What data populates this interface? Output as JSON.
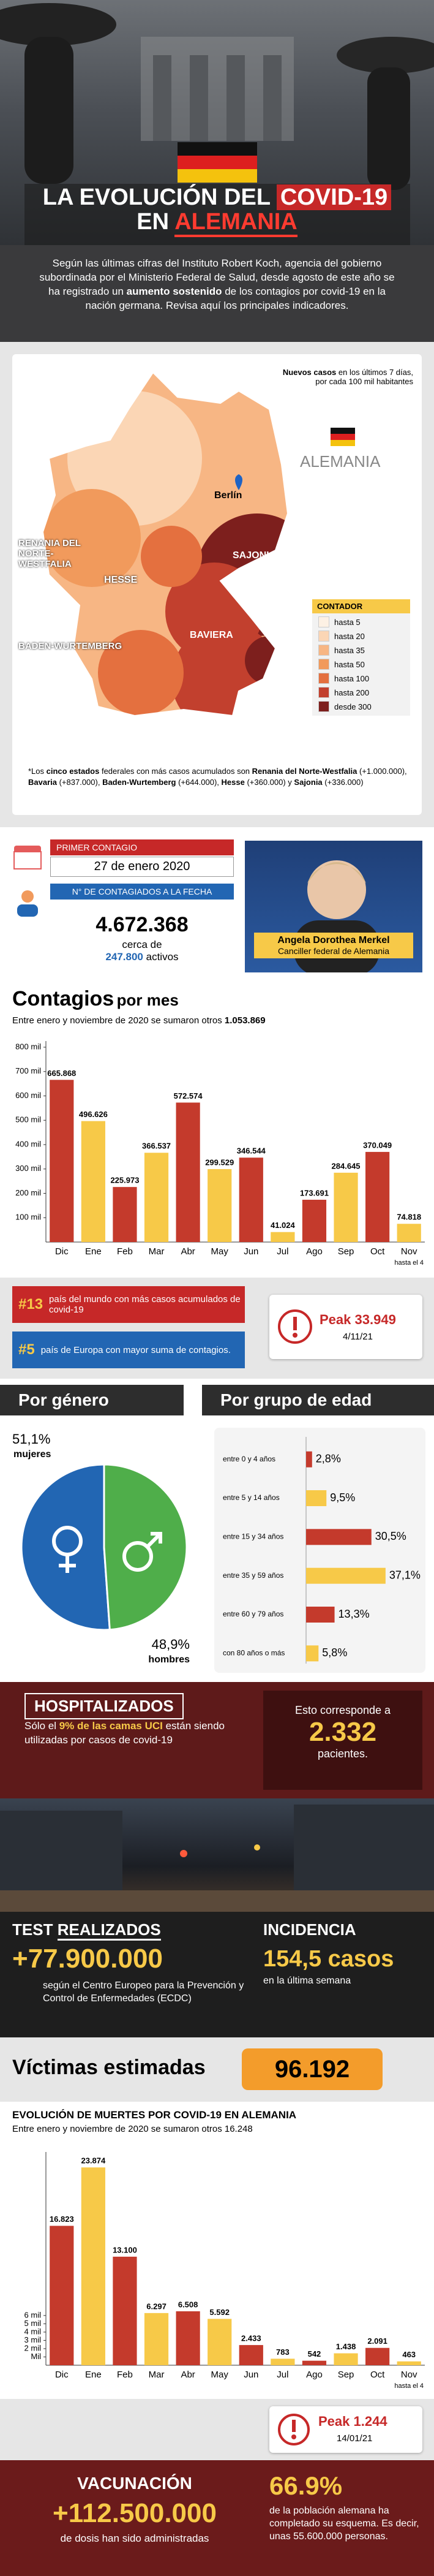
{
  "header": {
    "title_1": "LA EVOLUCIÓN DEL",
    "title_2": "COVID-19",
    "title_3": "EN",
    "title_4": "ALEMANIA"
  },
  "intro": {
    "text_1": "Según las últimas cifras del Instituto Robert Koch, agencia del gobierno subordinada por el Ministerio Federal de Salud, desde agosto de este año se ha registrado un ",
    "text_bold": "aumento sostenido",
    "text_2": " de los contagios por covid-19 en la nación germana. Revisa aquí los principales indicadores."
  },
  "map": {
    "note_bold": "Nuevos casos",
    "note": " en los últimos 7 días, por cada 100 mil habitantes",
    "country": "ALEMANIA",
    "regions": [
      "Berlín",
      "SAJONIA",
      "HESSE",
      "RENANIA DEL NORTE-WESTFALIA",
      "BADEN-WURTEMBERG",
      "BAVIERA"
    ],
    "legend_title": "CONTADOR",
    "legend": [
      {
        "label": "hasta 5",
        "color": "#fdf1e4"
      },
      {
        "label": "hasta 20",
        "color": "#fbd6b5"
      },
      {
        "label": "hasta 35",
        "color": "#f7b684"
      },
      {
        "label": "hasta 50",
        "color": "#f19a5c"
      },
      {
        "label": "hasta 100",
        "color": "#e4703f"
      },
      {
        "label": "hasta 200",
        "color": "#c2402e"
      },
      {
        "label": "desde 300",
        "color": "#7d1f1d"
      }
    ],
    "footnote": [
      {
        "text": "*Los ",
        "bold": false
      },
      {
        "text": "cinco estados",
        "bold": true
      },
      {
        "text": " federales con más casos acumulados son ",
        "bold": false
      },
      {
        "text": "Renania del Norte-Westfalia",
        "bold": true
      },
      {
        "text": " (+1.000.000), ",
        "bold": false
      },
      {
        "text": "Bavaria",
        "bold": true
      },
      {
        "text": " (+837.000), ",
        "bold": false
      },
      {
        "text": "Baden-Wurtemberg",
        "bold": true
      },
      {
        "text": " (+644.000), ",
        "bold": false
      },
      {
        "text": "Hesse",
        "bold": true
      },
      {
        "text": " (+360.000) y ",
        "bold": false
      },
      {
        "text": "Sajonia",
        "bold": true
      },
      {
        "text": " (+336.000)",
        "bold": false
      }
    ]
  },
  "facts": {
    "first_label": "PRIMER CONTAGIO",
    "first_date": "27 de enero 2020",
    "cases_label": "N° DE CONTAGIADOS A LA FECHA",
    "cases": "4.672.368",
    "active_1": "cerca de",
    "active_2": "247.800",
    "active_3": "activos",
    "person_name": "Angela Dorothea Merkel",
    "person_role": "Canciller federal de Alemania"
  },
  "monthly": {
    "title_1": "Contagios",
    "title_2": "por mes",
    "subtitle": "Entre enero y noviembre de 2020 se sumaron otros ",
    "subtitle_bold": "1.053.869"
  },
  "ranking": {
    "rank_1": "#13",
    "rank_1_text": "país del mundo con más casos acumulados de covid-19",
    "rank_2": "#5",
    "rank_2_text": "país de Europa con mayor suma de contagios.",
    "peak_label": "Peak",
    "peak_value": "33.949",
    "peak_date": "4/11/21"
  },
  "hospital": {
    "title": "HOSPITALIZADOS",
    "text_1": "Sólo el ",
    "text_bold": "9% de las camas UCI",
    "text_2": " están siendo utilizadas por casos de covid-19",
    "right_1": "Esto corresponde a",
    "right_value": "2.332",
    "right_2": "pacientes."
  },
  "tests": {
    "title_1": "TEST",
    "title_2": "REALIZADOS",
    "value": "+77.900.000",
    "text": "según el Centro Europeo para la Prevención y Control de Enfermedades (ECDC)",
    "inc_title": "INCIDENCIA",
    "inc_value": "154,5 casos",
    "inc_text": "en la última semana"
  },
  "deaths": {
    "title": "Víctimas estimadas",
    "value": "96.192",
    "peak_label": "Peak",
    "peak_value": "1.244",
    "peak_date": "14/01/21"
  },
  "vaccine": {
    "title": "VACUNACIÓN",
    "value": "+112.500.000",
    "text": "de dosis han sido administradas",
    "pct": "66.9%",
    "pct_text": "de la población alemana ha completado su esquema. Es decir, unas 55.600.000 personas."
  },
  "chart_data": [
    {
      "type": "bar",
      "categories": [
        "Dic",
        "Ene",
        "Feb",
        "Mar",
        "Abr",
        "May",
        "Jun",
        "Jul",
        "Ago",
        "Sep",
        "Oct",
        "Nov"
      ],
      "values": [
        665868,
        496626,
        225973,
        366537,
        572574,
        299529,
        346544,
        41024,
        173691,
        284645,
        370049,
        74818
      ],
      "value_labels": [
        "665.868",
        "496.626",
        "225.973",
        "366.537",
        "572.574",
        "299.529",
        "346.544",
        "41.024",
        "173.691",
        "284.645",
        "370.049",
        "74.818"
      ],
      "colors": [
        "#c43a2c",
        "#f7c948",
        "#c43a2c",
        "#f7c948",
        "#c43a2c",
        "#f7c948",
        "#c43a2c",
        "#f7c948",
        "#c43a2c",
        "#f7c948",
        "#c43a2c",
        "#f7c948"
      ],
      "note": "hasta el 4",
      "ylim": [
        0,
        800000
      ],
      "yticks": [
        {
          "value": 100000,
          "label": "100 mil"
        },
        {
          "value": 200000,
          "label": "200 mil"
        },
        {
          "value": 300000,
          "label": "300 mil"
        },
        {
          "value": 400000,
          "label": "400 mil"
        },
        {
          "value": 500000,
          "label": "500 mil"
        },
        {
          "value": 600000,
          "label": "600 mil"
        },
        {
          "value": 700000,
          "label": "700 mil"
        },
        {
          "value": 800000,
          "label": "800 mil"
        }
      ]
    },
    {
      "type": "pie",
      "title": "Por género",
      "categories": [
        "mujeres",
        "hombres"
      ],
      "values": [
        51.1,
        48.9
      ],
      "value_labels": [
        "51,1%",
        "48,9%"
      ],
      "colors": [
        "#2266b3",
        "#4fae4a"
      ]
    },
    {
      "type": "hbar",
      "title": "Por grupo de edad",
      "categories": [
        "entre 0 y 4 años",
        "entre 5 y 14 años",
        "entre 15 y 34 años",
        "entre 35 y 59 años",
        "entre 60 y 79 años",
        "con 80 años o más"
      ],
      "values": [
        2.8,
        9.5,
        30.5,
        37.1,
        13.3,
        5.8
      ],
      "value_labels": [
        "2,8%",
        "9,5%",
        "30,5%",
        "37,1%",
        "13,3%",
        "5,8%"
      ],
      "colors": [
        "#c43a2c",
        "#f7c948",
        "#c43a2c",
        "#f7c948",
        "#c43a2c",
        "#f7c948"
      ],
      "xlim": [
        0,
        40
      ]
    },
    {
      "type": "bar",
      "title": "EVOLUCIÓN DE MUERTES POR COVID-19 EN ALEMANIA",
      "subtitle": "Entre enero y noviembre de 2020 se sumaron otros 16.248",
      "categories": [
        "Dic",
        "Ene",
        "Feb",
        "Mar",
        "Abr",
        "May",
        "Jun",
        "Jul",
        "Ago",
        "Sep",
        "Oct",
        "Nov"
      ],
      "values": [
        16823,
        23874,
        13100,
        6297,
        6508,
        5592,
        2433,
        783,
        542,
        1438,
        2091,
        463
      ],
      "value_labels": [
        "16.823",
        "23.874",
        "13.100",
        "6.297",
        "6.508",
        "5.592",
        "2.433",
        "783",
        "542",
        "1.438",
        "2.091",
        "463"
      ],
      "colors": [
        "#c43a2c",
        "#f7c948",
        "#c43a2c",
        "#f7c948",
        "#c43a2c",
        "#f7c948",
        "#c43a2c",
        "#f7c948",
        "#c43a2c",
        "#f7c948",
        "#c43a2c",
        "#f7c948"
      ],
      "note": "hasta el 4",
      "ylim": [
        0,
        25000
      ],
      "yticks": [
        {
          "value": 1000,
          "label": "Mil"
        },
        {
          "value": 2000,
          "label": "2 mil"
        },
        {
          "value": 3000,
          "label": "3 mil"
        },
        {
          "value": 4000,
          "label": "4 mil"
        },
        {
          "value": 5000,
          "label": "5 mil"
        },
        {
          "value": 6000,
          "label": "6 mil"
        }
      ]
    }
  ]
}
